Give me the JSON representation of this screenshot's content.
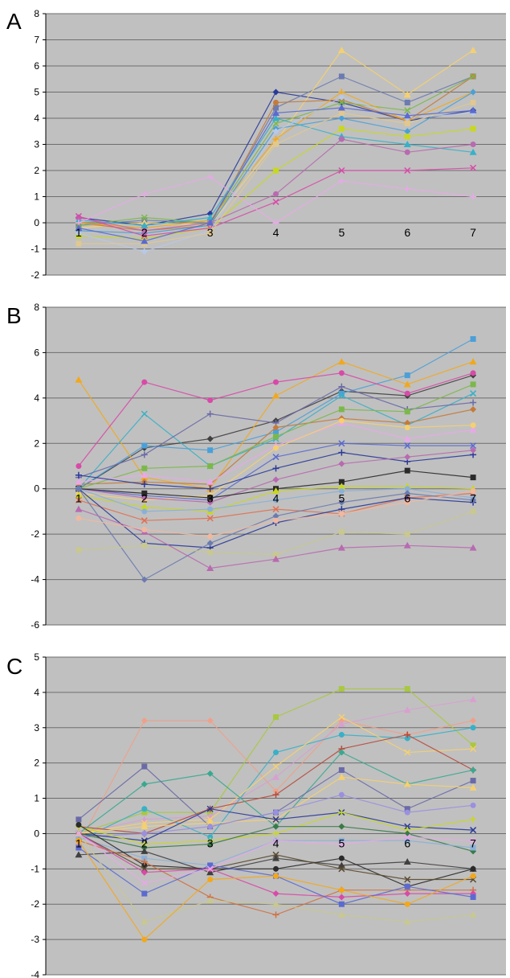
{
  "chart_data": [
    {
      "panel": "A",
      "type": "line",
      "x": [
        "1",
        "2",
        "3",
        "4",
        "5",
        "6",
        "7"
      ],
      "yticks": [
        8,
        7,
        6,
        5,
        4,
        3,
        2,
        1,
        0,
        -1,
        -2
      ],
      "ylim": [
        -2,
        8
      ],
      "grid": true,
      "legend": "none",
      "series": [
        {
          "values": [
            0.2,
            -0.1,
            0.35,
            5.0,
            4.6,
            3.9,
            4.3
          ],
          "color": "#2a3a99"
        },
        {
          "values": [
            -0.1,
            0.1,
            0.0,
            4.4,
            5.6,
            4.6,
            5.6
          ],
          "color": "#6b7bb0"
        },
        {
          "values": [
            -0.2,
            0.0,
            -0.1,
            3.1,
            6.6,
            4.9,
            6.6
          ],
          "color": "#f5d070"
        },
        {
          "values": [
            0.0,
            -0.3,
            -0.1,
            4.6,
            4.7,
            3.9,
            5.6
          ],
          "color": "#c57a3b"
        },
        {
          "values": [
            -0.1,
            0.2,
            0.0,
            3.8,
            4.6,
            4.3,
            5.6
          ],
          "color": "#7bb84a"
        },
        {
          "values": [
            0.0,
            -0.2,
            0.1,
            3.2,
            5.0,
            3.9,
            5.0
          ],
          "color": "#f2a81c"
        },
        {
          "values": [
            -0.3,
            -0.4,
            -0.1,
            3.6,
            4.0,
            3.5,
            5.0
          ],
          "color": "#4aa0d8"
        },
        {
          "values": [
            -0.5,
            -0.6,
            -0.2,
            2.0,
            3.6,
            3.3,
            3.6
          ],
          "color": "#c8d820"
        },
        {
          "values": [
            0.1,
            -0.1,
            0.2,
            4.0,
            3.3,
            3.0,
            2.7
          ],
          "color": "#38b0c8"
        },
        {
          "values": [
            0.2,
            -0.3,
            0.0,
            1.1,
            3.2,
            2.7,
            3.0
          ],
          "color": "#b86ab0"
        },
        {
          "values": [
            0.25,
            -0.5,
            -0.2,
            0.8,
            2.0,
            2.0,
            2.1
          ],
          "color": "#d84aa8"
        },
        {
          "values": [
            0.0,
            1.1,
            1.75,
            0.0,
            1.6,
            1.3,
            1.0
          ],
          "color": "#e8a8e8"
        },
        {
          "values": [
            -0.4,
            -1.1,
            -0.3,
            3.5,
            4.8,
            4.0,
            4.2
          ],
          "color": "#b8c8e8"
        },
        {
          "values": [
            -0.8,
            -0.8,
            -0.4,
            3.0,
            4.2,
            3.8,
            4.6
          ],
          "color": "#e0c890"
        },
        {
          "values": [
            -0.2,
            -0.7,
            0.0,
            4.2,
            4.4,
            4.1,
            4.3
          ],
          "color": "#5a6ad0"
        }
      ]
    },
    {
      "panel": "B",
      "type": "line",
      "x": [
        "1",
        "2",
        "3",
        "4",
        "5",
        "6",
        "7"
      ],
      "yticks": [
        8,
        6,
        4,
        2,
        0,
        -2,
        -4,
        -6
      ],
      "ylim": [
        -6,
        8
      ],
      "grid": true,
      "legend": "none",
      "series": [
        {
          "values": [
            0.0,
            1.8,
            2.2,
            3.0,
            4.3,
            4.1,
            5.0
          ],
          "color": "#404040"
        },
        {
          "values": [
            0.0,
            1.9,
            1.7,
            2.5,
            4.2,
            5.0,
            6.6
          ],
          "color": "#4aa0d8"
        },
        {
          "values": [
            4.8,
            0.5,
            0.0,
            4.1,
            5.6,
            4.6,
            5.6
          ],
          "color": "#f2a81c"
        },
        {
          "values": [
            1.0,
            4.7,
            3.9,
            4.7,
            5.1,
            4.2,
            5.1
          ],
          "color": "#d84aa8"
        },
        {
          "values": [
            0.0,
            3.3,
            1.0,
            2.2,
            4.1,
            2.8,
            4.2
          ],
          "color": "#38b0c8"
        },
        {
          "values": [
            0.5,
            1.5,
            3.3,
            2.9,
            4.5,
            3.5,
            3.8
          ],
          "color": "#6a6aa8"
        },
        {
          "values": [
            0.2,
            0.3,
            0.2,
            2.7,
            3.1,
            2.9,
            3.5
          ],
          "color": "#c57a3b"
        },
        {
          "values": [
            0.0,
            0.9,
            1.0,
            2.3,
            3.5,
            3.4,
            4.6
          ],
          "color": "#7bb84a"
        },
        {
          "values": [
            0.3,
            0.6,
            0.3,
            1.9,
            2.9,
            2.2,
            2.6
          ],
          "color": "#e8a8e8"
        },
        {
          "values": [
            -0.2,
            -0.5,
            -0.3,
            1.8,
            3.0,
            2.7,
            2.8
          ],
          "color": "#f5d070"
        },
        {
          "values": [
            0.0,
            -0.3,
            -0.5,
            1.4,
            2.0,
            1.9,
            1.9
          ],
          "color": "#5a6ad0"
        },
        {
          "values": [
            0.6,
            0.2,
            0.0,
            0.9,
            1.6,
            1.2,
            1.5
          ],
          "color": "#2a3a99"
        },
        {
          "values": [
            0.0,
            -0.4,
            -0.6,
            0.4,
            1.1,
            1.4,
            1.7
          ],
          "color": "#b86ab0"
        },
        {
          "values": [
            0.0,
            -0.2,
            -0.4,
            0.0,
            0.3,
            0.8,
            0.5
          ],
          "color": "#2a2a2a"
        },
        {
          "values": [
            -0.3,
            -0.8,
            -1.0,
            -0.1,
            0.1,
            0.1,
            0.0
          ],
          "color": "#c8d820"
        },
        {
          "values": [
            0.0,
            -1.0,
            -0.9,
            -0.5,
            -0.1,
            0.0,
            -0.4
          ],
          "color": "#8ab0d8"
        },
        {
          "values": [
            -0.5,
            -1.4,
            -1.3,
            -0.9,
            -1.1,
            -0.4,
            -0.2
          ],
          "color": "#e07050"
        },
        {
          "values": [
            0.0,
            -2.4,
            -2.6,
            -1.5,
            -0.9,
            -0.4,
            -0.6
          ],
          "color": "#2a3a99"
        },
        {
          "values": [
            0.0,
            -4.0,
            -2.4,
            -1.2,
            -0.6,
            -0.2,
            -0.5
          ],
          "color": "#6b7bb0"
        },
        {
          "values": [
            -2.7,
            -2.5,
            -2.8,
            -2.9,
            -1.9,
            -2.0,
            -1.0
          ],
          "color": "#c8c890"
        },
        {
          "values": [
            -0.9,
            -1.9,
            -3.5,
            -3.1,
            -2.6,
            -2.5,
            -2.6
          ],
          "color": "#b86ab0"
        },
        {
          "values": [
            -1.3,
            -1.8,
            -2.1,
            -1.4,
            -1.1,
            -0.6,
            -0.1
          ],
          "color": "#f0b8a0"
        }
      ]
    },
    {
      "panel": "C",
      "type": "line",
      "x": [
        "1",
        "2",
        "3",
        "4",
        "5",
        "6",
        "7"
      ],
      "yticks": [
        5,
        4,
        3,
        2,
        1,
        0,
        -1,
        -2,
        -3,
        -4
      ],
      "ylim": [
        -4,
        5
      ],
      "grid": true,
      "legend": "none",
      "series": [
        {
          "values": [
            -0.3,
            3.2,
            3.2,
            1.2,
            3.2,
            2.8,
            3.2
          ],
          "color": "#f0a088"
        },
        {
          "values": [
            0.0,
            0.6,
            0.6,
            3.3,
            4.1,
            4.1,
            2.5
          ],
          "color": "#a8c840"
        },
        {
          "values": [
            0.0,
            0.4,
            0.5,
            1.6,
            3.1,
            3.5,
            3.8
          ],
          "color": "#d8a0d0"
        },
        {
          "values": [
            -0.2,
            0.7,
            -0.1,
            2.3,
            2.8,
            2.7,
            3.0
          ],
          "color": "#38b0c8"
        },
        {
          "values": [
            0.0,
            0.3,
            0.4,
            1.9,
            3.3,
            2.3,
            2.4
          ],
          "color": "#f5d070"
        },
        {
          "values": [
            0.2,
            0.0,
            0.7,
            1.1,
            2.4,
            2.8,
            1.8
          ],
          "color": "#b84a3a"
        },
        {
          "values": [
            0.0,
            1.4,
            1.7,
            0.2,
            2.3,
            1.4,
            1.8
          ],
          "color": "#3aa890"
        },
        {
          "values": [
            0.4,
            1.9,
            0.2,
            0.6,
            1.8,
            0.7,
            1.5
          ],
          "color": "#6a6aa8"
        },
        {
          "values": [
            0.0,
            0.2,
            0.3,
            0.4,
            1.6,
            1.4,
            1.3
          ],
          "color": "#f5d070"
        },
        {
          "values": [
            -0.1,
            0.0,
            0.2,
            0.6,
            1.1,
            0.6,
            0.8
          ],
          "color": "#9a90e0"
        },
        {
          "values": [
            0.0,
            -0.2,
            0.7,
            0.4,
            0.6,
            0.2,
            0.1
          ],
          "color": "#2a3a99"
        },
        {
          "values": [
            0.2,
            -0.3,
            -0.2,
            0.0,
            0.6,
            0.1,
            0.4
          ],
          "color": "#c8d820"
        },
        {
          "values": [
            0.0,
            -0.4,
            -0.3,
            0.2,
            0.2,
            0.0,
            -0.5
          ],
          "color": "#3a7a48"
        },
        {
          "values": [
            -0.1,
            -0.7,
            -0.9,
            -0.2,
            -0.2,
            -0.2,
            -0.4
          ],
          "color": "#8ab0d8"
        },
        {
          "values": [
            -0.6,
            -0.5,
            -1.1,
            -0.7,
            -0.9,
            -0.8,
            -1.0
          ],
          "color": "#404040"
        },
        {
          "values": [
            0.25,
            -0.9,
            -1.0,
            -1.0,
            -0.7,
            -1.5,
            -1.0
          ],
          "color": "#2a2a2a"
        },
        {
          "values": [
            0.0,
            -1.0,
            -1.0,
            -0.6,
            -1.0,
            -1.3,
            -1.3
          ],
          "color": "#5a4a30"
        },
        {
          "values": [
            -0.2,
            -0.8,
            -1.8,
            -2.3,
            -1.6,
            -1.6,
            -1.6
          ],
          "color": "#d07040"
        },
        {
          "values": [
            0.0,
            -1.1,
            -1.0,
            -1.7,
            -1.8,
            -1.7,
            -1.7
          ],
          "color": "#d84aa8"
        },
        {
          "values": [
            -0.4,
            -1.7,
            -0.9,
            -1.2,
            -2.0,
            -1.5,
            -1.8
          ],
          "color": "#5a6ad0"
        },
        {
          "values": [
            0.0,
            -2.5,
            -1.9,
            -2.0,
            -2.3,
            -2.5,
            -2.3
          ],
          "color": "#c8c890"
        },
        {
          "values": [
            -0.2,
            -3.0,
            -1.3,
            -1.2,
            -1.6,
            -2.0,
            -1.2
          ],
          "color": "#f2a81c"
        },
        {
          "values": [
            0.0,
            -1.4,
            -1.0,
            -0.2,
            -0.3,
            -0.1,
            -0.2
          ],
          "color": "#e8a8e8"
        }
      ]
    }
  ]
}
